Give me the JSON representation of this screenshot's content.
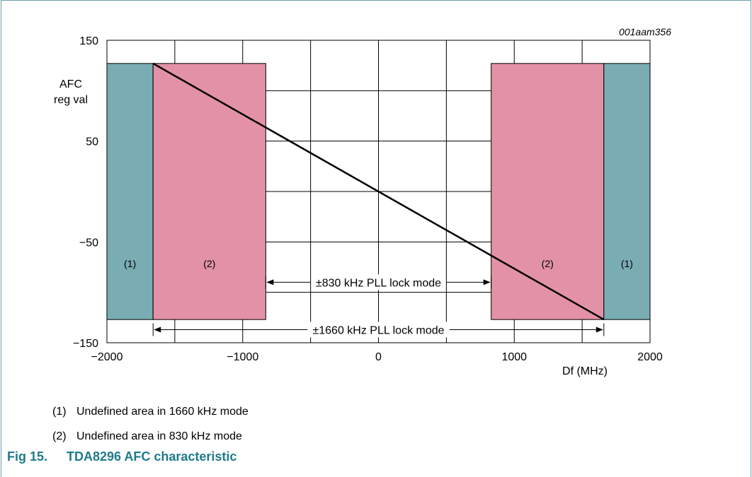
{
  "figure": {
    "id": "001aam356",
    "caption_label": "Fig 15.",
    "caption_title": "TDA8296 AFC characteristic"
  },
  "chart_data": {
    "type": "line",
    "xlabel": "Df (MHz)",
    "ylabel": "AFC reg val",
    "ylabel_lines": [
      "AFC",
      "reg val"
    ],
    "xlim": [
      -2000,
      2000
    ],
    "ylim": [
      -150,
      150
    ],
    "x_ticks": [
      -2000,
      -1000,
      0,
      1000,
      2000
    ],
    "x_tick_labels": [
      "−2000",
      "−1000",
      "0",
      "1000",
      "2000"
    ],
    "y_ticks": [
      150,
      50,
      -50,
      -150
    ],
    "y_tick_labels": [
      "150",
      "50",
      "−50",
      "−150"
    ],
    "grid": true,
    "grid_x": [
      -1500,
      -1000,
      -500,
      0,
      500,
      1000,
      1500
    ],
    "grid_y": [
      100,
      50,
      0,
      -50,
      -100
    ],
    "series": [
      {
        "values": [
          {
            "x": -1660,
            "y": 127
          },
          {
            "x": 1660,
            "y": -127
          }
        ]
      }
    ],
    "regions": [
      {
        "label": "(1)",
        "x0": -2000,
        "x1": -1660,
        "y0": -127,
        "y1": 127,
        "color": "#7aacb3"
      },
      {
        "label": "(2)",
        "x0": -1660,
        "x1": -830,
        "y0": -127,
        "y1": 127,
        "color": "#e391a7"
      },
      {
        "label": "(2)",
        "x0": 830,
        "x1": 1660,
        "y0": -127,
        "y1": 127,
        "color": "#e391a7"
      },
      {
        "label": "(1)",
        "x0": 1660,
        "x1": 2000,
        "y0": -127,
        "y1": 127,
        "color": "#7aacb3"
      }
    ],
    "annotations": [
      {
        "text": "±830 kHz PLL lock mode",
        "x0": -830,
        "x1": 830,
        "y": -90
      },
      {
        "text": "±1660 kHz PLL lock mode",
        "x0": -1660,
        "x1": 1660,
        "y": -137
      }
    ]
  },
  "notes": [
    {
      "num": "(1)",
      "text": "Undefined area in 1660 kHz mode"
    },
    {
      "num": "(2)",
      "text": "Undefined area in 830 kHz mode"
    }
  ]
}
